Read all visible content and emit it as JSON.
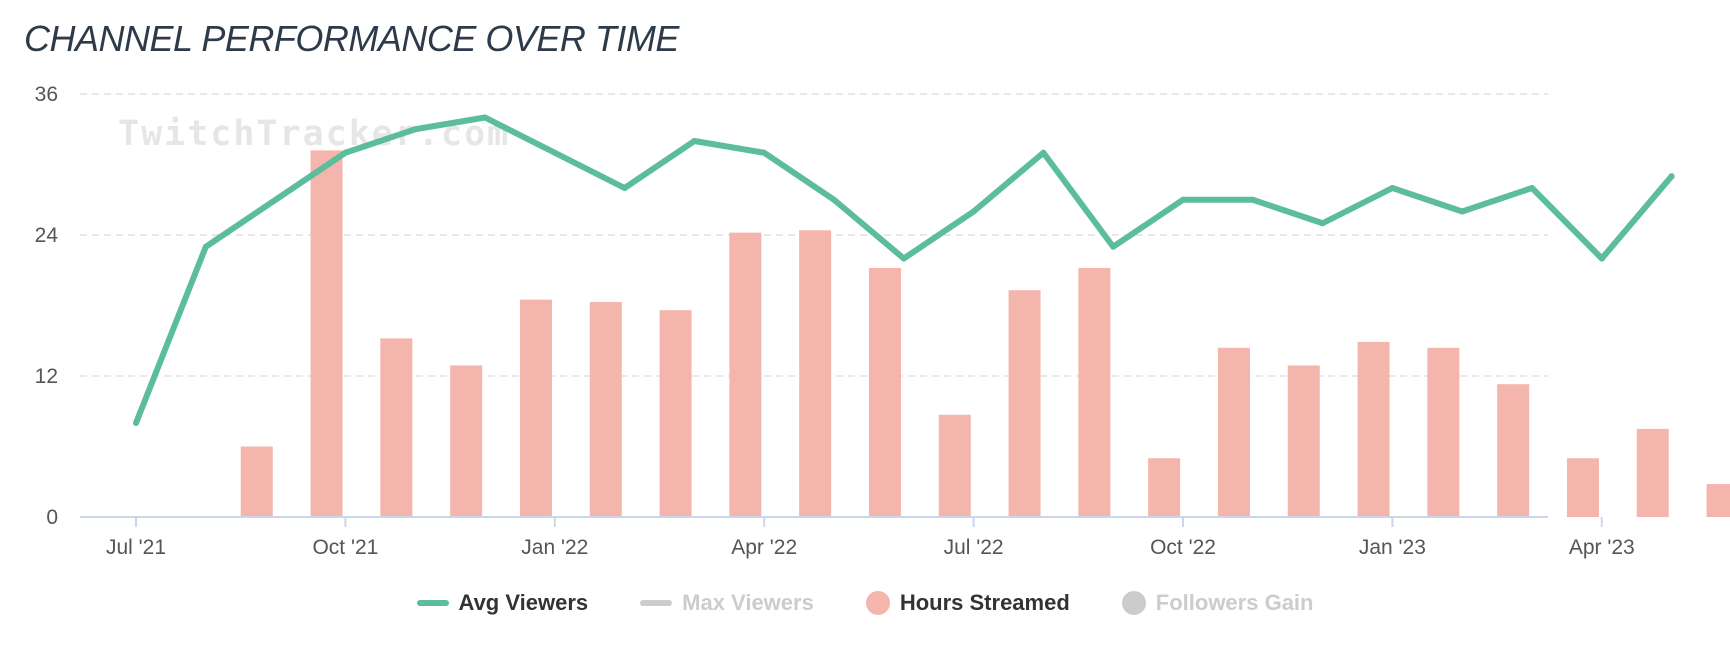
{
  "title": "CHANNEL PERFORMANCE OVER TIME",
  "watermark": "TwitchTracker.com",
  "colors": {
    "avg_viewers": "#5bbd9c",
    "max_viewers": "#cccccc",
    "hours_streamed": "#f4b5ac",
    "followers_gain": "#cccccc",
    "grid": "#e0e0e0",
    "axis": "#ccd6eb",
    "tick_text": "#555555"
  },
  "legend": {
    "avg_viewers": "Avg Viewers",
    "max_viewers": "Max Viewers",
    "hours_streamed": "Hours Streamed",
    "followers_gain": "Followers Gain"
  },
  "chart_data": {
    "type": "bar+line",
    "title": "CHANNEL PERFORMANCE OVER TIME",
    "months": [
      "Jul '21",
      "Aug '21",
      "Sep '21",
      "Oct '21",
      "Nov '21",
      "Dec '21",
      "Jan '22",
      "Feb '22",
      "Mar '22",
      "Apr '22",
      "May '22",
      "Jun '22",
      "Jul '22",
      "Aug '22",
      "Sep '22",
      "Oct '22",
      "Nov '22",
      "Dec '22",
      "Jan '23",
      "Feb '23",
      "Mar '23",
      "Apr '23",
      "May '23"
    ],
    "x_tick_labels": [
      "Jul '21",
      "Oct '21",
      "Jan '22",
      "Apr '22",
      "Jul '22",
      "Oct '22",
      "Jan '23",
      "Apr '23"
    ],
    "y_ticks": [
      0,
      12,
      24,
      36
    ],
    "ylim": [
      0,
      36
    ],
    "series": [
      {
        "name": "Hours Streamed",
        "type": "bar",
        "visible": true,
        "values": [
          0,
          6,
          31.2,
          15.2,
          12.9,
          18.5,
          18.3,
          17.6,
          24.2,
          24.4,
          21.2,
          8.7,
          19.3,
          21.2,
          5,
          14.4,
          12.9,
          14.9,
          14.4,
          11.3,
          5,
          7.5,
          2.8
        ]
      },
      {
        "name": "Avg Viewers",
        "type": "line",
        "visible": true,
        "values": [
          8,
          23,
          27,
          31,
          33,
          34,
          31,
          28,
          32,
          31,
          27,
          22,
          26,
          31,
          23,
          27,
          27,
          25,
          28,
          26,
          28,
          22,
          29
        ]
      },
      {
        "name": "Max Viewers",
        "type": "line",
        "visible": false,
        "values": []
      },
      {
        "name": "Followers Gain",
        "type": "bar",
        "visible": false,
        "values": []
      }
    ]
  }
}
